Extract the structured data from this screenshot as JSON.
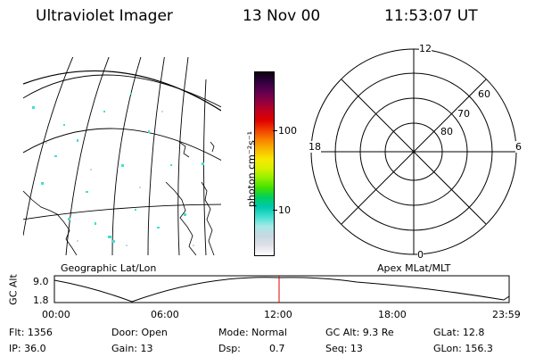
{
  "header": {
    "instrument": "Ultraviolet Imager",
    "date": "13 Nov 00",
    "time": "11:53:07 UT"
  },
  "colorbar": {
    "unit_label": "photon cm⁻²s⁻¹",
    "ticks": [
      {
        "label": "100",
        "value": 100
      },
      {
        "label": "10",
        "value": 10
      }
    ],
    "colors": [
      "#ffffff",
      "#e0e0e8",
      "#c8d8e0",
      "#a8e8e8",
      "#40e0d0",
      "#00c8b0",
      "#00d060",
      "#40e000",
      "#90f000",
      "#d8f000",
      "#f8e800",
      "#f8b800",
      "#f88000",
      "#f04000",
      "#e00000",
      "#c00020",
      "#900040",
      "#600050",
      "#300040",
      "#100010"
    ]
  },
  "left_panel": {
    "label": "Geographic Lat/Lon"
  },
  "polar_plot": {
    "label": "Apex MLat/MLT",
    "lat_labels": [
      "80",
      "70",
      "60"
    ],
    "mlt_labels": {
      "top": "12",
      "right": "6",
      "bottom": "0",
      "left": "18"
    }
  },
  "altitude_plot": {
    "ylabel": "GC Alt",
    "ytick_labels": [
      "9.0",
      "1.8"
    ],
    "xtick_labels": [
      "00:00",
      "06:00",
      "12:00",
      "18:00",
      "23:59"
    ],
    "marker_color": "#e00000"
  },
  "info": {
    "row1": {
      "flt": "Flt: 1356",
      "door": "Door: Open",
      "mode": "Mode: Normal",
      "gcalt": "GC Alt: 9.3 Re",
      "glat": "GLat:  12.8"
    },
    "row2": {
      "ip": "IP: 36.0",
      "gain": "Gain: 13",
      "dsp_label": "Dsp:",
      "dsp_value": "0.7",
      "seq": "Seq: 13",
      "glon": "GLon: 156.3"
    }
  }
}
